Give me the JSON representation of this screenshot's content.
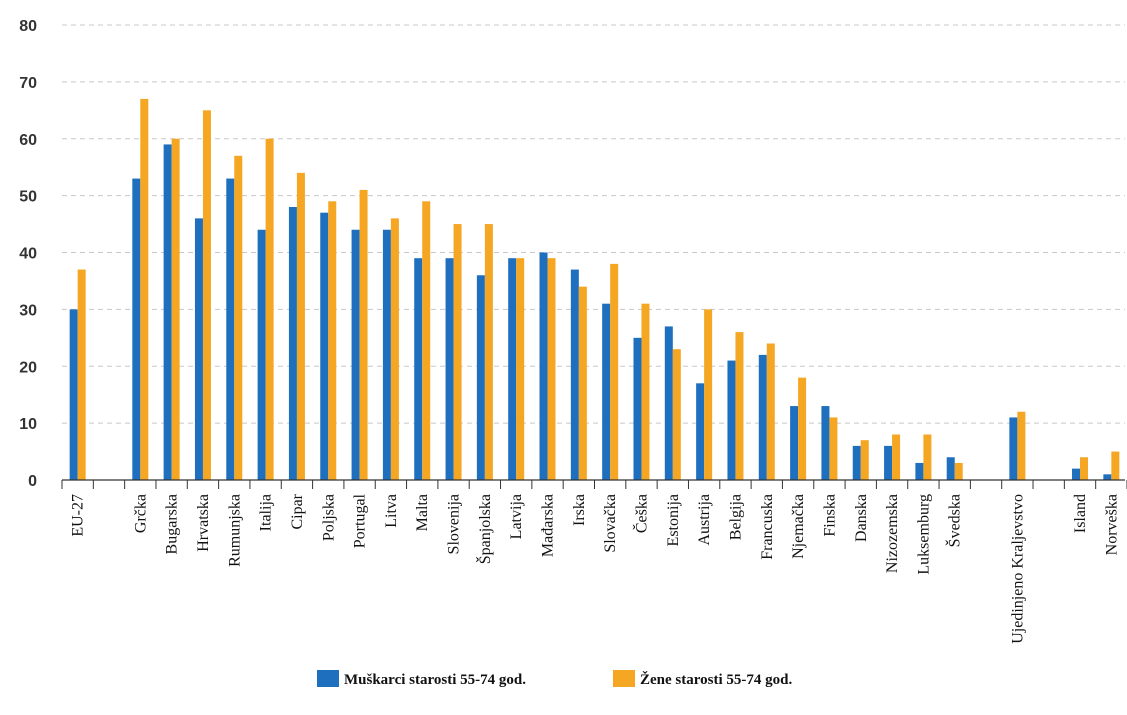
{
  "chart_data": {
    "type": "bar",
    "title": "",
    "xlabel": "",
    "ylabel": "",
    "ylim": [
      0,
      80
    ],
    "yticks": [
      0,
      10,
      20,
      30,
      40,
      50,
      60,
      70,
      80
    ],
    "grid": true,
    "legend_position": "bottom",
    "categories": [
      "EU-27",
      "",
      "Grčka",
      "Bugarska",
      "Hrvatska",
      "Rumunjska",
      "Italija",
      "Cipar",
      "Poljska",
      "Portugal",
      "Litva",
      "Malta",
      "Slovenija",
      "Španjolska",
      "Latvija",
      "Mađarska",
      "Irska",
      "Slovačka",
      "Češka",
      "Estonija",
      "Austrija",
      "Belgija",
      "Francuska",
      "Njemačka",
      "Finska",
      "Danska",
      "Nizozemska",
      "Luksemburg",
      "Švedska",
      "",
      "Ujedinjeno Kraljevstvo",
      "",
      "Island",
      "Norveška"
    ],
    "highlight_category": "Hrvatska",
    "highlight_color": "#e0211b",
    "series": [
      {
        "name": "Muškarci starosti 55-74 god.",
        "color": "#1f6fbf",
        "values": [
          30,
          null,
          53,
          59,
          46,
          53,
          44,
          48,
          47,
          44,
          44,
          39,
          39,
          36,
          39,
          40,
          37,
          31,
          25,
          27,
          17,
          21,
          22,
          13,
          13,
          6,
          6,
          3,
          4,
          null,
          11,
          null,
          2,
          1
        ]
      },
      {
        "name": "Žene starosti 55-74 god.",
        "color": "#f5a623",
        "values": [
          37,
          null,
          67,
          60,
          65,
          57,
          60,
          54,
          49,
          51,
          46,
          49,
          45,
          45,
          39,
          39,
          34,
          38,
          31,
          23,
          30,
          26,
          24,
          18,
          11,
          7,
          8,
          8,
          3,
          null,
          12,
          null,
          4,
          5
        ]
      }
    ]
  }
}
